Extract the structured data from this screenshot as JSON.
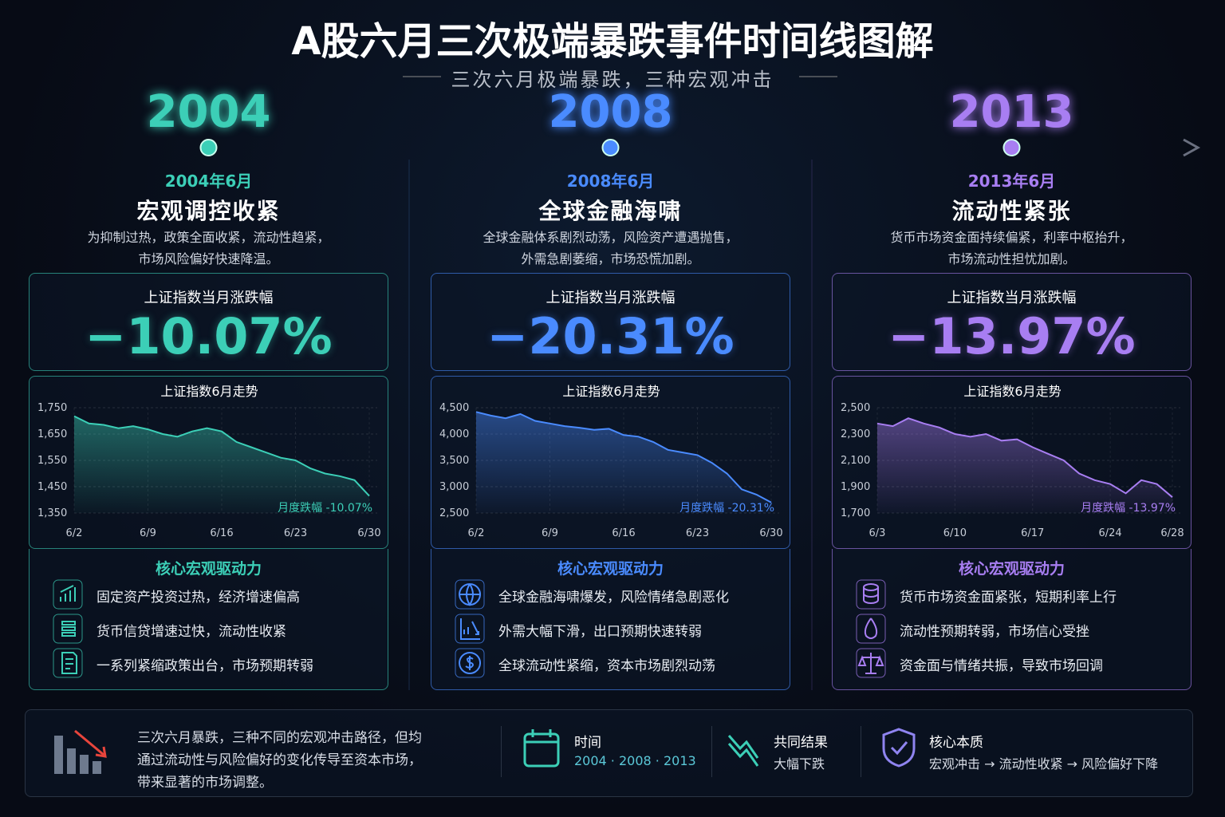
{
  "header": {
    "title": "A股六月三次极端暴跌事件时间线图解",
    "subtitle": "三次六月极端暴跌，三种宏观冲击"
  },
  "panels": [
    {
      "year": "2004",
      "color": "#3ccfb7",
      "month": "2004年6月",
      "event": "宏观调控收紧",
      "description": [
        "为抑制过热，政策全面收紧，流动性趋紧，",
        "市场风险偏好快速降温。"
      ],
      "stat_label": "上证指数当月涨跌幅",
      "stat_value": "−10.07%",
      "chart": {
        "type": "line",
        "title": "上证指数6月走势",
        "categories": [
          "6/2",
          null,
          null,
          null,
          null,
          "6/9",
          null,
          null,
          null,
          null,
          "6/16",
          null,
          null,
          null,
          null,
          "6/23",
          null,
          null,
          null,
          null,
          "6/30"
        ],
        "values": [
          1718,
          1690,
          1685,
          1672,
          1680,
          1668,
          1650,
          1640,
          1660,
          1672,
          1660,
          1620,
          1600,
          1580,
          1560,
          1550,
          1520,
          1500,
          1490,
          1475,
          1415
        ],
        "ylim": [
          1350,
          1750
        ],
        "yticks": [
          {
            "value": 1350,
            "label": "1,350"
          },
          {
            "value": 1450,
            "label": "1,450"
          },
          {
            "value": 1550,
            "label": "1,550"
          },
          {
            "value": 1650,
            "label": "1,650"
          },
          {
            "value": 1750,
            "label": "1,750"
          }
        ],
        "annotation": "月度跌幅 -10.07%"
      },
      "drivers_title": "核心宏观驱动力",
      "drivers": [
        "固定资产投资过热，经济增速偏高",
        "货币信贷增速过快，流动性收紧",
        "一系列紧缩政策出台，市场预期转弱"
      ]
    },
    {
      "year": "2008",
      "color": "#4a8bff",
      "month": "2008年6月",
      "event": "全球金融海啸",
      "description": [
        "全球金融体系剧烈动荡，风险资产遭遇抛售，",
        "外需急剧萎缩，市场恐慌加剧。"
      ],
      "stat_label": "上证指数当月涨跌幅",
      "stat_value": "−20.31%",
      "chart": {
        "type": "line",
        "title": "上证指数6月走势",
        "categories": [
          "6/2",
          null,
          null,
          null,
          null,
          "6/9",
          null,
          null,
          null,
          null,
          "6/16",
          null,
          null,
          null,
          null,
          "6/23",
          null,
          null,
          null,
          null,
          "6/30"
        ],
        "values": [
          4420,
          4350,
          4300,
          4380,
          4250,
          4200,
          4150,
          4120,
          4080,
          4100,
          3980,
          3950,
          3850,
          3700,
          3650,
          3600,
          3450,
          3250,
          2950,
          2850,
          2700
        ],
        "ylim": [
          2500,
          4500
        ],
        "yticks": [
          {
            "value": 2500,
            "label": "2,500"
          },
          {
            "value": 3000,
            "label": "3,000"
          },
          {
            "value": 3500,
            "label": "3,500"
          },
          {
            "value": 4000,
            "label": "4,000"
          },
          {
            "value": 4500,
            "label": "4,500"
          }
        ],
        "annotation": "月度跌幅 -20.31%"
      },
      "drivers_title": "核心宏观驱动力",
      "drivers": [
        "全球金融海啸爆发，风险情绪急剧恶化",
        "外需大幅下滑，出口预期快速转弱",
        "全球流动性紧缩，资本市场剧烈动荡"
      ]
    },
    {
      "year": "2013",
      "color": "#a87ef2",
      "month": "2013年6月",
      "event": "流动性紧张",
      "description": [
        "货币市场资金面持续偏紧，利率中枢抬升，",
        "市场流动性担忧加剧。"
      ],
      "stat_label": "上证指数当月涨跌幅",
      "stat_value": "−13.97%",
      "chart": {
        "type": "line",
        "title": "上证指数6月走势",
        "categories": [
          "6/3",
          null,
          null,
          null,
          null,
          "6/10",
          null,
          null,
          null,
          null,
          "6/17",
          null,
          null,
          null,
          null,
          "6/24",
          null,
          null,
          null,
          "6/28"
        ],
        "values": [
          2380,
          2360,
          2420,
          2380,
          2350,
          2300,
          2280,
          2300,
          2250,
          2260,
          2200,
          2150,
          2100,
          2000,
          1950,
          1920,
          1850,
          1950,
          1920,
          1820
        ],
        "ylim": [
          1700,
          2500
        ],
        "yticks": [
          {
            "value": 1700,
            "label": "1,700"
          },
          {
            "value": 1900,
            "label": "1,900"
          },
          {
            "value": 2100,
            "label": "2,100"
          },
          {
            "value": 2300,
            "label": "2,300"
          },
          {
            "value": 2500,
            "label": "2,500"
          }
        ],
        "annotation": "月度跌幅 -13.97%"
      },
      "drivers_title": "核心宏观驱动力",
      "drivers": [
        "货币市场资金面紧张，短期利率上行",
        "流动性预期转弱，市场信心受挫",
        "资金面与情绪共振，导致市场回调"
      ]
    }
  ],
  "footer": {
    "summary": [
      "三次六月暴跌，三种不同的宏观冲击路径，但均",
      "通过流动性与风险偏好的变化传导至资本市场，",
      "带来显著的市场调整。"
    ],
    "items": [
      {
        "label": "时间",
        "value": "2004 · 2008 · 2013"
      },
      {
        "label": "共同结果",
        "value": "大幅下跌"
      },
      {
        "label": "核心本质",
        "value": "宏观冲击 → 流动性收紧 → 风险偏好下降"
      }
    ]
  }
}
